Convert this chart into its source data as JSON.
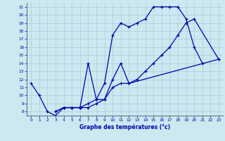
{
  "xlabel": "Graphe des températures (°c)",
  "bg_color": "#cce8f0",
  "grid_color": "#aaccdd",
  "line_color": "#0000aa",
  "xlim": [
    -0.5,
    23.5
  ],
  "ylim": [
    7.5,
    21.5
  ],
  "xticks": [
    0,
    1,
    2,
    3,
    4,
    5,
    6,
    7,
    8,
    9,
    10,
    11,
    12,
    13,
    14,
    15,
    16,
    17,
    18,
    19,
    20,
    21,
    22,
    23
  ],
  "yticks": [
    8,
    9,
    10,
    11,
    12,
    13,
    14,
    15,
    16,
    17,
    18,
    19,
    20,
    21
  ],
  "line1_x": [
    0,
    1,
    2,
    3,
    4,
    5,
    6,
    7,
    8,
    9,
    10,
    11,
    12,
    13,
    14,
    15,
    16,
    17,
    18,
    19,
    20,
    21
  ],
  "line1_y": [
    11.5,
    10.0,
    8.0,
    7.5,
    8.5,
    8.5,
    8.5,
    9.0,
    9.5,
    11.5,
    17.5,
    19.0,
    18.5,
    19.0,
    19.5,
    21.0,
    21.0,
    21.0,
    21.0,
    19.5,
    16.0,
    14.0
  ],
  "line2_x": [
    3,
    4,
    5,
    6,
    7,
    8,
    9,
    10,
    11,
    12,
    13,
    14,
    15,
    16,
    17,
    18,
    19,
    20,
    23
  ],
  "line2_y": [
    8.0,
    8.5,
    8.5,
    8.5,
    8.5,
    9.0,
    9.5,
    11.0,
    11.5,
    11.5,
    12.0,
    13.0,
    14.0,
    15.0,
    16.0,
    17.5,
    19.0,
    19.5,
    14.5
  ],
  "line3_x": [
    3,
    4,
    5,
    6,
    7,
    8,
    9,
    10,
    11,
    12,
    23
  ],
  "line3_y": [
    8.0,
    8.5,
    8.5,
    8.5,
    14.0,
    9.5,
    9.5,
    12.0,
    14.0,
    11.5,
    14.5
  ]
}
